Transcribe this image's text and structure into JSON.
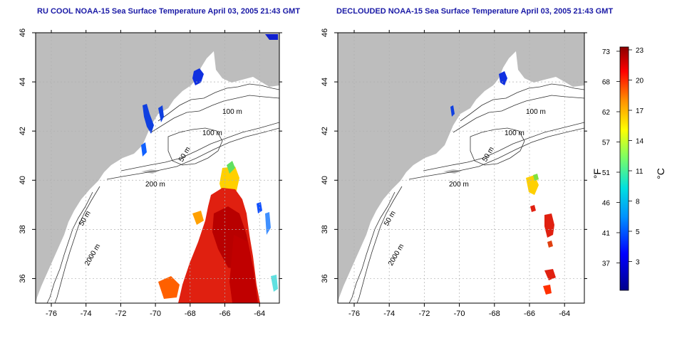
{
  "panels": [
    {
      "title": "RU COOL NOAA-15 Sea Surface Temperature April 03, 2005 21:43 GMT",
      "contour_labels": [
        "100 m",
        "100 m",
        "50 m",
        "200 m",
        "50 m",
        "2000 m"
      ]
    },
    {
      "title": "DECLOUDED NOAA-15 Sea Surface Temperature April 03, 2005 21:43 GMT",
      "contour_labels": [
        "100 m",
        "100 m",
        "50 m",
        "200 m",
        "50 m",
        "2000 m"
      ]
    }
  ],
  "axes": {
    "x_ticks": [
      "-76",
      "-74",
      "-72",
      "-70",
      "-68",
      "-66",
      "-64"
    ],
    "y_ticks": [
      "36",
      "38",
      "40",
      "42",
      "44",
      "46"
    ]
  },
  "colorbar": {
    "fahrenheit_ticks": [
      "73",
      "68",
      "62",
      "57",
      "51",
      "46",
      "41",
      "37"
    ],
    "celsius_ticks": [
      "23",
      "20",
      "17",
      "14",
      "11",
      "8",
      "5",
      "3"
    ],
    "fahrenheit_unit": "°F",
    "celsius_unit": "°C"
  },
  "colors": {
    "land": "#bdbdbd",
    "ocean": "#ffffff",
    "title": "#1a1aa6",
    "grid": "#b0b0b0"
  }
}
